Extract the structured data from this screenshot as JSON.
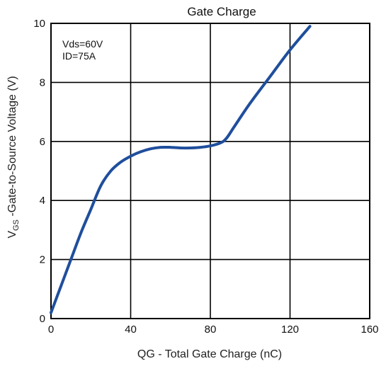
{
  "chart_data": {
    "type": "line",
    "title": "Gate Charge",
    "xlabel": "QG - Total Gate Charge (nC)",
    "ylabel_main": "V",
    "ylabel_sub": "GS",
    "ylabel_rest": " -Gate-to-Source Voltage (V)",
    "xlim": [
      0,
      160
    ],
    "ylim": [
      0,
      10
    ],
    "x_ticks": [
      0,
      40,
      80,
      120,
      160
    ],
    "y_ticks": [
      0,
      2,
      4,
      6,
      8,
      10
    ],
    "grid": true,
    "annotations": [
      "Vds=60V",
      "ID=75A"
    ],
    "line_color": "#1f4e9c",
    "series": [
      {
        "x": [
          0,
          5,
          10,
          15,
          20,
          25,
          30,
          35,
          40,
          45,
          50,
          55,
          60,
          65,
          70,
          75,
          80,
          85,
          88,
          92,
          100,
          110,
          120,
          130
        ],
        "y": [
          0.2,
          1.1,
          2.0,
          2.9,
          3.7,
          4.5,
          5.0,
          5.3,
          5.5,
          5.65,
          5.75,
          5.8,
          5.8,
          5.78,
          5.78,
          5.8,
          5.85,
          5.95,
          6.1,
          6.5,
          7.3,
          8.2,
          9.1,
          9.9
        ]
      }
    ]
  }
}
